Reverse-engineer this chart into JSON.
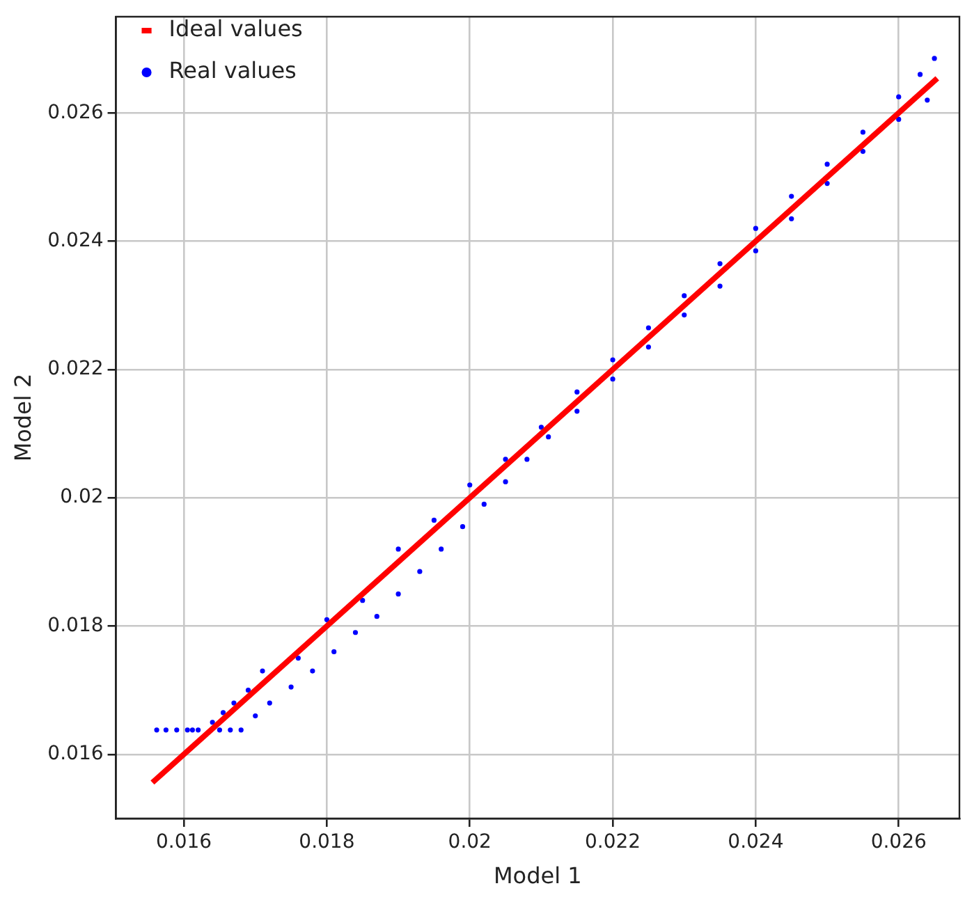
{
  "chart_data": {
    "type": "scatter",
    "xlabel": "Model 1",
    "ylabel": "Model 2",
    "xlim": [
      0.01505,
      0.02685
    ],
    "ylim": [
      0.015,
      0.0275
    ],
    "xticks": [
      0.016,
      0.018,
      0.02,
      0.022,
      0.024,
      0.026
    ],
    "yticks": [
      0.016,
      0.018,
      0.02,
      0.022,
      0.024,
      0.026
    ],
    "grid": true,
    "legend": "top left",
    "marker": "circle",
    "series": [
      {
        "name": "Ideal values",
        "type": "line",
        "color": "#ff0000",
        "line_style": "solid",
        "marker": "none",
        "x": [
          0.01556,
          0.02654
        ],
        "values": [
          0.01556,
          0.02654
        ]
      },
      {
        "name": "Real values",
        "color": "#0000ff",
        "x": [
          0.01562,
          0.01575,
          0.0159,
          0.01605,
          0.0162,
          0.01612,
          0.0165,
          0.01665,
          0.0168,
          0.0164,
          0.01655,
          0.0167,
          0.0169,
          0.0171,
          0.017,
          0.0172,
          0.0175,
          0.0178,
          0.0181,
          0.0184,
          0.0187,
          0.019,
          0.0193,
          0.0196,
          0.0199,
          0.0202,
          0.0205,
          0.0208,
          0.0211,
          0.0176,
          0.018,
          0.0185,
          0.019,
          0.0195,
          0.02,
          0.0205,
          0.021,
          0.0215,
          0.022,
          0.0225,
          0.023,
          0.0235,
          0.024,
          0.0245,
          0.025,
          0.0255,
          0.026,
          0.0263,
          0.0265,
          0.0215,
          0.022,
          0.0225,
          0.023,
          0.0235,
          0.024,
          0.0245,
          0.025,
          0.0255,
          0.026,
          0.0264
        ],
        "values": [
          0.01638,
          0.01638,
          0.01638,
          0.01638,
          0.01638,
          0.01638,
          0.01638,
          0.01638,
          0.01638,
          0.0165,
          0.01665,
          0.0168,
          0.017,
          0.0173,
          0.0166,
          0.0168,
          0.01705,
          0.0173,
          0.0176,
          0.0179,
          0.01815,
          0.0185,
          0.01885,
          0.0192,
          0.01955,
          0.0199,
          0.02025,
          0.0206,
          0.02095,
          0.0175,
          0.0181,
          0.0184,
          0.0192,
          0.01965,
          0.0202,
          0.0206,
          0.0211,
          0.02165,
          0.02215,
          0.02265,
          0.02315,
          0.02365,
          0.0242,
          0.0247,
          0.0252,
          0.0257,
          0.02625,
          0.0266,
          0.02685,
          0.02135,
          0.02185,
          0.02235,
          0.02285,
          0.0233,
          0.02385,
          0.02435,
          0.0249,
          0.0254,
          0.0259,
          0.0262
        ]
      }
    ]
  }
}
